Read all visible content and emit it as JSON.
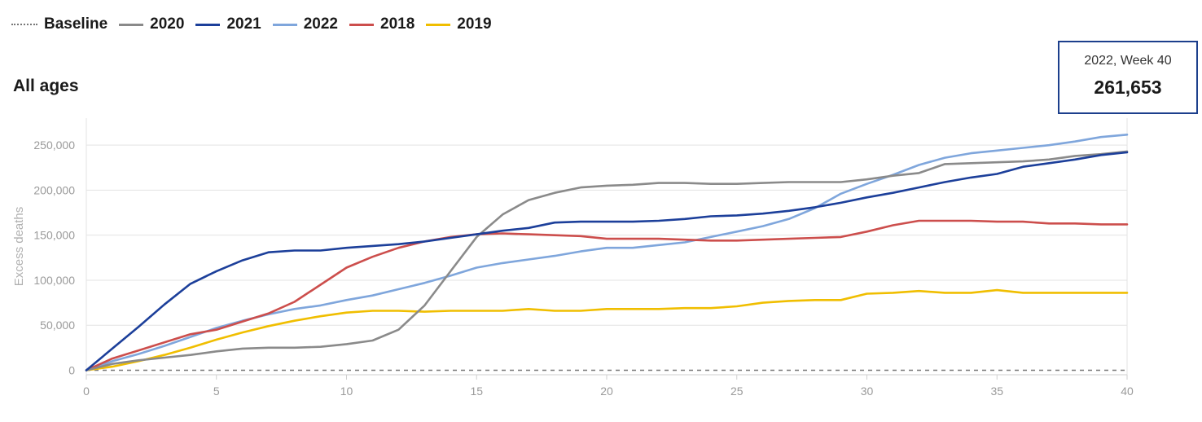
{
  "legend": {
    "items": [
      {
        "label": "Baseline",
        "style": "dotted",
        "color": "#777777"
      },
      {
        "label": "2020",
        "style": "solid",
        "color": "#8a8a8a"
      },
      {
        "label": "2021",
        "style": "solid",
        "color": "#1c3f9a"
      },
      {
        "label": "2022",
        "style": "solid",
        "color": "#7fa6dc"
      },
      {
        "label": "2018",
        "style": "solid",
        "color": "#cc4e4c"
      },
      {
        "label": "2019",
        "style": "solid",
        "color": "#f0be00"
      }
    ]
  },
  "subtitle": "All ages",
  "tooltip": {
    "label": "2022, Week 40",
    "value": "261,653"
  },
  "chart_data": {
    "type": "line",
    "ylabel": "Excess deaths",
    "xlabel": "",
    "xlim": [
      0,
      40
    ],
    "ylim": [
      -5000,
      280000
    ],
    "x_ticks": [
      0,
      5,
      10,
      15,
      20,
      25,
      30,
      35,
      40
    ],
    "x_tick_labels": [
      "0",
      "5",
      "10",
      "15",
      "20",
      "25",
      "30",
      "35",
      "40"
    ],
    "y_ticks": [
      0,
      50000,
      100000,
      150000,
      200000,
      250000
    ],
    "y_tick_labels": [
      "0",
      "50,000",
      "100,000",
      "150,000",
      "200,000",
      "250,000"
    ],
    "grid": true,
    "legend_position": "top-left",
    "baseline": {
      "name": "Baseline",
      "value": 0,
      "color": "#777777"
    },
    "x": [
      0,
      1,
      2,
      3,
      4,
      5,
      6,
      7,
      8,
      9,
      10,
      11,
      12,
      13,
      14,
      15,
      16,
      17,
      18,
      19,
      20,
      21,
      22,
      23,
      24,
      25,
      26,
      27,
      28,
      29,
      30,
      31,
      32,
      33,
      34,
      35,
      36,
      37,
      38,
      39,
      40
    ],
    "series": [
      {
        "name": "2022",
        "color": "#7fa6dc",
        "values": [
          0,
          10000,
          18000,
          27000,
          37000,
          47000,
          55000,
          62000,
          68000,
          72000,
          78000,
          83000,
          90000,
          97000,
          105000,
          114000,
          119000,
          123000,
          127000,
          132000,
          136000,
          136000,
          139000,
          142000,
          148000,
          154000,
          160000,
          168000,
          180000,
          196000,
          207000,
          217000,
          228000,
          236000,
          241000,
          244000,
          247000,
          250000,
          254000,
          259000,
          261653
        ]
      },
      {
        "name": "2018",
        "color": "#cc4e4c",
        "values": [
          0,
          13000,
          22000,
          31000,
          40000,
          45000,
          54000,
          63000,
          76000,
          95000,
          114000,
          126000,
          136000,
          143000,
          148000,
          151000,
          152000,
          151000,
          150000,
          149000,
          146000,
          146000,
          146000,
          145000,
          144000,
          144000,
          145000,
          146000,
          147000,
          148000,
          154000,
          161000,
          166000,
          166000,
          166000,
          165000,
          165000,
          163000,
          163000,
          162000,
          162000
        ]
      },
      {
        "name": "2019",
        "color": "#f0be00",
        "values": [
          0,
          4000,
          10000,
          17000,
          25000,
          34000,
          42000,
          49000,
          55000,
          60000,
          64000,
          66000,
          66000,
          65000,
          66000,
          66000,
          66000,
          68000,
          66000,
          66000,
          68000,
          68000,
          68000,
          69000,
          69000,
          71000,
          75000,
          77000,
          78000,
          78000,
          85000,
          86000,
          88000,
          86000,
          86000,
          89000,
          86000,
          86000,
          86000,
          86000,
          86000
        ]
      },
      {
        "name": "2020",
        "color": "#8a8a8a",
        "values": [
          0,
          7000,
          11000,
          14000,
          17000,
          21000,
          24000,
          25000,
          25000,
          26000,
          29000,
          33000,
          45000,
          72000,
          110000,
          148000,
          173000,
          189000,
          197000,
          203000,
          205000,
          206000,
          208000,
          208000,
          207000,
          207000,
          208000,
          209000,
          209000,
          209000,
          212000,
          216000,
          219000,
          229000,
          230000,
          231000,
          232000,
          234000,
          238000,
          240000,
          243000
        ]
      },
      {
        "name": "2021",
        "color": "#1c3f9a",
        "values": [
          0,
          24000,
          48000,
          73000,
          96000,
          110000,
          122000,
          131000,
          133000,
          133000,
          136000,
          138000,
          140000,
          143000,
          147000,
          151000,
          155000,
          158000,
          164000,
          165000,
          165000,
          165000,
          166000,
          168000,
          171000,
          172000,
          174000,
          177000,
          181000,
          186000,
          192000,
          197000,
          203000,
          209000,
          214000,
          218000,
          226000,
          230000,
          234000,
          239000,
          242000
        ]
      }
    ]
  }
}
